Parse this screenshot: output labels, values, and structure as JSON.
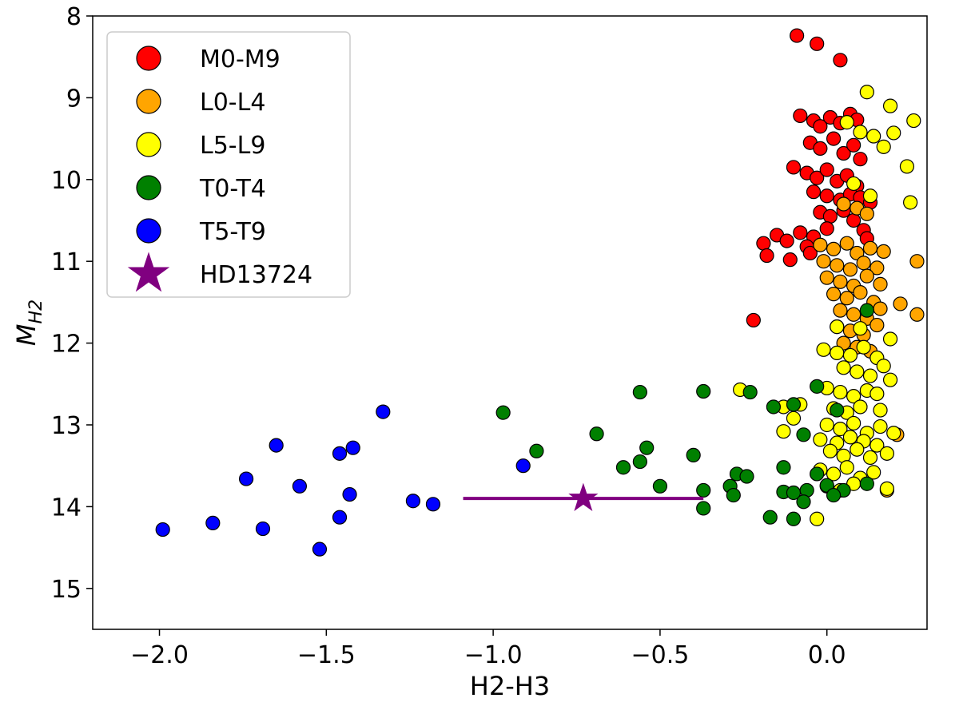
{
  "chart_data": {
    "type": "scatter",
    "title": "",
    "xlabel": "H2-H3",
    "ylabel": {
      "main": "M",
      "sub": "H2"
    },
    "xlim": [
      -2.2,
      0.3
    ],
    "ylim": [
      15.5,
      8.0
    ],
    "y_inverted": true,
    "xticks": [
      -2.0,
      -1.5,
      -1.0,
      -0.5,
      0.0
    ],
    "xtick_labels": [
      "−2.0",
      "−1.5",
      "−1.0",
      "−0.5",
      "0.0"
    ],
    "yticks": [
      8,
      9,
      10,
      11,
      12,
      13,
      14,
      15
    ],
    "ytick_labels": [
      "8",
      "9",
      "10",
      "11",
      "12",
      "13",
      "14",
      "15"
    ],
    "grid": false,
    "legend_position": "top-left",
    "series": [
      {
        "name": "M0-M9",
        "color": "#ff0000",
        "marker": "circle",
        "points": [
          [
            -0.09,
            8.24
          ],
          [
            -0.03,
            8.34
          ],
          [
            0.04,
            8.54
          ],
          [
            -0.08,
            9.22
          ],
          [
            -0.04,
            9.28
          ],
          [
            -0.02,
            9.35
          ],
          [
            0.01,
            9.24
          ],
          [
            0.04,
            9.31
          ],
          [
            0.07,
            9.2
          ],
          [
            0.09,
            9.27
          ],
          [
            -0.05,
            9.55
          ],
          [
            -0.02,
            9.62
          ],
          [
            0.02,
            9.5
          ],
          [
            0.05,
            9.68
          ],
          [
            0.08,
            9.58
          ],
          [
            0.1,
            9.75
          ],
          [
            -0.1,
            9.85
          ],
          [
            -0.06,
            9.92
          ],
          [
            -0.03,
            9.98
          ],
          [
            0.0,
            9.88
          ],
          [
            0.03,
            10.02
          ],
          [
            0.06,
            9.95
          ],
          [
            0.09,
            10.08
          ],
          [
            -0.04,
            10.15
          ],
          [
            0.0,
            10.2
          ],
          [
            0.04,
            10.25
          ],
          [
            0.07,
            10.18
          ],
          [
            0.1,
            10.22
          ],
          [
            0.13,
            10.28
          ],
          [
            -0.02,
            10.4
          ],
          [
            0.01,
            10.45
          ],
          [
            0.05,
            10.38
          ],
          [
            0.08,
            10.5
          ],
          [
            -0.08,
            10.65
          ],
          [
            -0.04,
            10.7
          ],
          [
            0.0,
            10.6
          ],
          [
            0.11,
            10.62
          ],
          [
            -0.19,
            10.78
          ],
          [
            -0.15,
            10.68
          ],
          [
            -0.12,
            10.75
          ],
          [
            -0.06,
            10.82
          ],
          [
            0.12,
            10.72
          ],
          [
            -0.18,
            10.93
          ],
          [
            -0.11,
            10.98
          ],
          [
            -0.05,
            10.9
          ],
          [
            -0.22,
            11.72
          ]
        ]
      },
      {
        "name": "L0-L4",
        "color": "#ffa500",
        "marker": "circle",
        "points": [
          [
            0.05,
            10.3
          ],
          [
            0.09,
            10.35
          ],
          [
            0.12,
            10.42
          ],
          [
            -0.02,
            10.8
          ],
          [
            0.02,
            10.85
          ],
          [
            0.06,
            10.78
          ],
          [
            0.09,
            10.9
          ],
          [
            0.13,
            10.84
          ],
          [
            0.17,
            10.88
          ],
          [
            -0.01,
            11.0
          ],
          [
            0.03,
            11.05
          ],
          [
            0.07,
            11.1
          ],
          [
            0.11,
            11.02
          ],
          [
            0.15,
            11.08
          ],
          [
            0.27,
            11.0
          ],
          [
            0.0,
            11.2
          ],
          [
            0.04,
            11.25
          ],
          [
            0.08,
            11.3
          ],
          [
            0.12,
            11.18
          ],
          [
            0.16,
            11.28
          ],
          [
            0.02,
            11.4
          ],
          [
            0.06,
            11.45
          ],
          [
            0.1,
            11.38
          ],
          [
            0.14,
            11.5
          ],
          [
            0.04,
            11.6
          ],
          [
            0.08,
            11.65
          ],
          [
            0.12,
            11.7
          ],
          [
            0.16,
            11.58
          ],
          [
            0.22,
            11.52
          ],
          [
            0.27,
            11.65
          ],
          [
            0.03,
            11.8
          ],
          [
            0.07,
            11.85
          ],
          [
            0.11,
            11.9
          ],
          [
            0.15,
            11.78
          ],
          [
            0.05,
            12.0
          ],
          [
            0.09,
            12.05
          ],
          [
            0.13,
            12.1
          ],
          [
            0.18,
            13.8
          ],
          [
            0.21,
            13.12
          ]
        ]
      },
      {
        "name": "L5-L9",
        "color": "#ffff00",
        "marker": "circle",
        "points": [
          [
            0.12,
            8.93
          ],
          [
            0.19,
            9.1
          ],
          [
            0.26,
            9.28
          ],
          [
            0.06,
            9.3
          ],
          [
            0.1,
            9.42
          ],
          [
            0.14,
            9.47
          ],
          [
            0.2,
            9.43
          ],
          [
            0.17,
            9.6
          ],
          [
            0.24,
            9.84
          ],
          [
            0.08,
            10.05
          ],
          [
            0.13,
            10.2
          ],
          [
            0.25,
            10.28
          ],
          [
            0.03,
            11.8
          ],
          [
            0.1,
            11.82
          ],
          [
            -0.01,
            12.08
          ],
          [
            0.03,
            12.12
          ],
          [
            0.07,
            12.15
          ],
          [
            0.11,
            12.05
          ],
          [
            0.15,
            12.18
          ],
          [
            0.19,
            11.95
          ],
          [
            0.05,
            12.3
          ],
          [
            0.09,
            12.35
          ],
          [
            0.13,
            12.4
          ],
          [
            0.17,
            12.28
          ],
          [
            0.19,
            12.45
          ],
          [
            -0.26,
            12.57
          ],
          [
            0.0,
            12.55
          ],
          [
            0.04,
            12.6
          ],
          [
            0.08,
            12.65
          ],
          [
            0.12,
            12.58
          ],
          [
            0.15,
            12.62
          ],
          [
            -0.13,
            12.78
          ],
          [
            -0.08,
            12.75
          ],
          [
            0.02,
            12.8
          ],
          [
            0.06,
            12.85
          ],
          [
            0.1,
            12.78
          ],
          [
            0.16,
            12.82
          ],
          [
            -0.1,
            12.92
          ],
          [
            0.0,
            13.0
          ],
          [
            0.04,
            13.05
          ],
          [
            0.08,
            12.98
          ],
          [
            0.12,
            13.1
          ],
          [
            0.16,
            13.02
          ],
          [
            -0.13,
            13.08
          ],
          [
            -0.02,
            13.18
          ],
          [
            0.03,
            13.22
          ],
          [
            0.07,
            13.15
          ],
          [
            0.11,
            13.2
          ],
          [
            0.15,
            13.25
          ],
          [
            0.2,
            13.1
          ],
          [
            0.01,
            13.32
          ],
          [
            0.05,
            13.38
          ],
          [
            0.09,
            13.3
          ],
          [
            0.13,
            13.4
          ],
          [
            0.18,
            13.35
          ],
          [
            -0.02,
            13.55
          ],
          [
            0.02,
            13.6
          ],
          [
            0.06,
            13.52
          ],
          [
            0.1,
            13.65
          ],
          [
            0.14,
            13.58
          ],
          [
            0.0,
            13.75
          ],
          [
            0.04,
            13.8
          ],
          [
            0.08,
            13.72
          ],
          [
            0.18,
            13.78
          ],
          [
            -0.03,
            14.15
          ]
        ]
      },
      {
        "name": "T0-T4",
        "color": "#008000",
        "marker": "circle",
        "points": [
          [
            0.12,
            11.6
          ],
          [
            -0.56,
            12.6
          ],
          [
            -0.37,
            12.59
          ],
          [
            -0.23,
            12.6
          ],
          [
            -0.03,
            12.53
          ],
          [
            -0.97,
            12.85
          ],
          [
            -0.16,
            12.78
          ],
          [
            -0.1,
            12.75
          ],
          [
            0.03,
            12.82
          ],
          [
            -0.69,
            13.11
          ],
          [
            -0.07,
            13.12
          ],
          [
            -0.87,
            13.32
          ],
          [
            -0.54,
            13.28
          ],
          [
            -0.4,
            13.37
          ],
          [
            -0.61,
            13.52
          ],
          [
            -0.56,
            13.45
          ],
          [
            -0.13,
            13.52
          ],
          [
            -0.03,
            13.6
          ],
          [
            -0.27,
            13.6
          ],
          [
            -0.24,
            13.63
          ],
          [
            -0.5,
            13.75
          ],
          [
            -0.37,
            13.8
          ],
          [
            -0.29,
            13.75
          ],
          [
            -0.28,
            13.86
          ],
          [
            -0.13,
            13.82
          ],
          [
            -0.1,
            13.83
          ],
          [
            -0.06,
            13.8
          ],
          [
            0.0,
            13.74
          ],
          [
            0.05,
            13.8
          ],
          [
            0.12,
            13.72
          ],
          [
            -0.37,
            14.02
          ],
          [
            -0.07,
            13.94
          ],
          [
            0.02,
            13.86
          ],
          [
            -0.17,
            14.13
          ],
          [
            -0.1,
            14.15
          ]
        ]
      },
      {
        "name": "T5-T9",
        "color": "#0000ff",
        "marker": "circle",
        "points": [
          [
            -1.33,
            12.84
          ],
          [
            -1.65,
            13.25
          ],
          [
            -1.42,
            13.28
          ],
          [
            -1.46,
            13.35
          ],
          [
            -0.91,
            13.5
          ],
          [
            -1.74,
            13.66
          ],
          [
            -1.58,
            13.75
          ],
          [
            -1.43,
            13.85
          ],
          [
            -1.24,
            13.93
          ],
          [
            -1.18,
            13.97
          ],
          [
            -1.46,
            14.13
          ],
          [
            -1.84,
            14.2
          ],
          [
            -1.99,
            14.28
          ],
          [
            -1.69,
            14.27
          ],
          [
            -1.52,
            14.52
          ]
        ]
      },
      {
        "name": "HD13724",
        "color": "#800080",
        "marker": "star",
        "points": [
          [
            -0.73,
            13.9
          ]
        ],
        "xerr": [
          [
            -1.09,
            -0.37
          ]
        ]
      }
    ]
  }
}
